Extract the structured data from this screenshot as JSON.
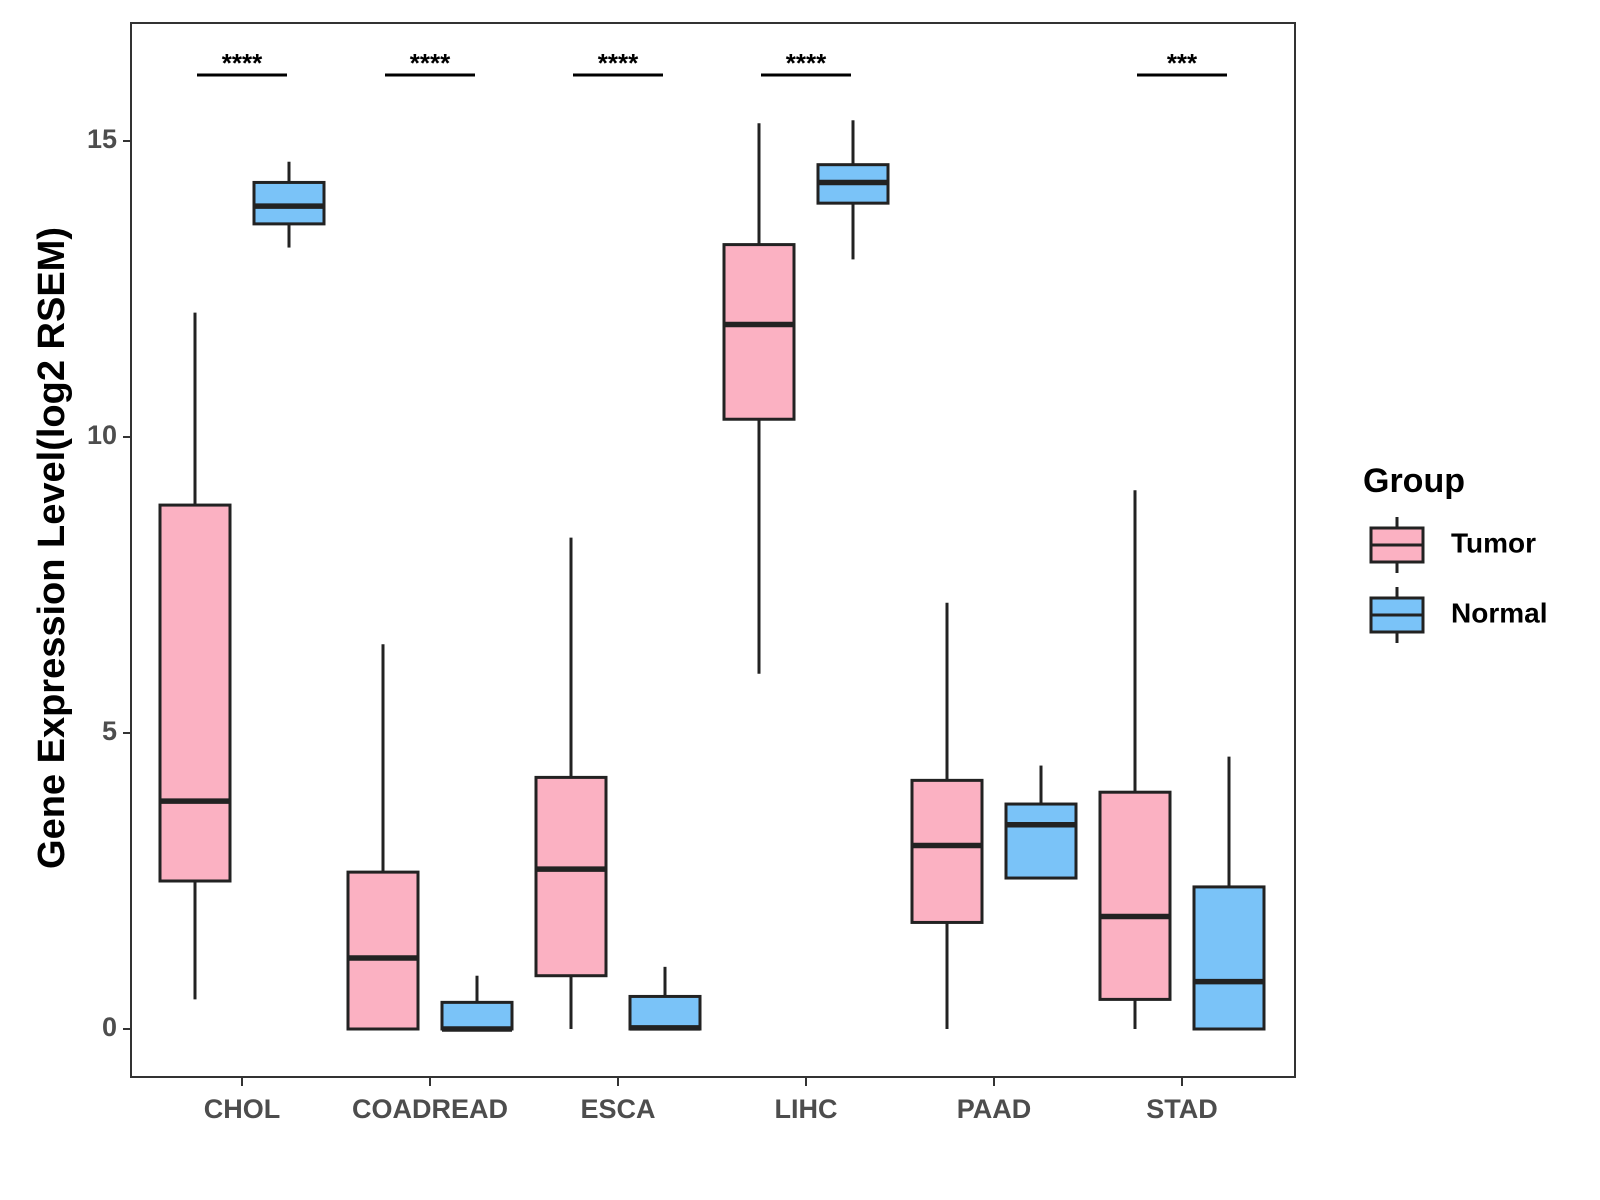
{
  "chart_data": {
    "type": "boxplot",
    "title": "",
    "xlabel": "",
    "ylabel": "Gene Expression Level(log2 RSEM)",
    "ylim": [
      -0.8,
      16.9
    ],
    "yticks": [
      0,
      5,
      10,
      15
    ],
    "grid": false,
    "categories": [
      "CHOL",
      "COADREAD",
      "ESCA",
      "LIHC",
      "PAAD",
      "STAD"
    ],
    "legend": {
      "title": "Group",
      "position": "right"
    },
    "series": [
      {
        "name": "Tumor",
        "color": "#FBB1C2",
        "boxes": [
          {
            "min": 0.5,
            "q1": 2.5,
            "median": 3.85,
            "q3": 8.85,
            "max": 12.1
          },
          {
            "min": 0.0,
            "q1": 0.0,
            "median": 1.2,
            "q3": 2.65,
            "max": 6.5
          },
          {
            "min": 0.0,
            "q1": 0.9,
            "median": 2.7,
            "q3": 4.25,
            "max": 8.3
          },
          {
            "min": 6.0,
            "q1": 10.3,
            "median": 11.9,
            "q3": 13.25,
            "max": 15.3
          },
          {
            "min": 0.0,
            "q1": 1.8,
            "median": 3.1,
            "q3": 4.2,
            "max": 7.2
          },
          {
            "min": 0.0,
            "q1": 0.5,
            "median": 1.9,
            "q3": 4.0,
            "max": 9.1
          }
        ]
      },
      {
        "name": "Normal",
        "color": "#7AC3F8",
        "boxes": [
          {
            "min": 13.2,
            "q1": 13.6,
            "median": 13.9,
            "q3": 14.3,
            "max": 14.65
          },
          {
            "min": 0.0,
            "q1": 0.0,
            "median": 0.0,
            "q3": 0.45,
            "max": 0.9
          },
          {
            "min": 0.0,
            "q1": 0.0,
            "median": 0.02,
            "q3": 0.55,
            "max": 1.05
          },
          {
            "min": 13.0,
            "q1": 13.95,
            "median": 14.3,
            "q3": 14.6,
            "max": 15.35
          },
          {
            "min": 2.55,
            "q1": 2.55,
            "median": 3.45,
            "q3": 3.8,
            "max": 4.45
          },
          {
            "min": 0.0,
            "q1": 0.0,
            "median": 0.8,
            "q3": 2.4,
            "max": 4.6
          }
        ]
      }
    ],
    "significance": [
      {
        "category": "CHOL",
        "label": "****"
      },
      {
        "category": "COADREAD",
        "label": "****"
      },
      {
        "category": "ESCA",
        "label": "****"
      },
      {
        "category": "LIHC",
        "label": "****"
      },
      {
        "category": "STAD",
        "label": "***"
      }
    ]
  }
}
